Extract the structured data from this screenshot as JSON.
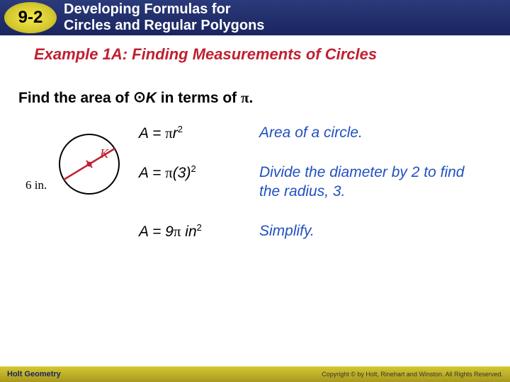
{
  "header": {
    "section_number": "9-2",
    "title_line1": "Developing Formulas for",
    "title_line2": "Circles and Regular Polygons"
  },
  "example": {
    "title": "Example 1A: Finding Measurements of Circles",
    "prompt_prefix": "Find the area of ",
    "prompt_symbol": "⊙",
    "prompt_var": "K",
    "prompt_mid": " in terms of ",
    "prompt_pi": "π",
    "prompt_end": "."
  },
  "figure": {
    "diameter_label": "6 in.",
    "center_label": "K",
    "circle_stroke": "#000000",
    "diameter_color": "#c02030",
    "center_dot_color": "#c02030",
    "label_color": "#c02030",
    "background": "#ffffff"
  },
  "work": {
    "rows": [
      {
        "eq_html": "<span>A</span> = <span class='pi'>π</span><span>r</span><span class='sup'>2</span>",
        "explanation": "Area of a circle."
      },
      {
        "eq_html": "<span>A</span> = <span class='pi'>π</span>(3)<span class='sup'>2</span>",
        "explanation": "Divide the diameter by 2 to find the radius, 3."
      },
      {
        "eq_html": "<span>A</span> = 9<span class='pi'>π</span> in<span class='sup'>2</span>",
        "explanation": "Simplify."
      }
    ]
  },
  "footer": {
    "left": "Holt Geometry",
    "right": "Copyright © by Holt, Rinehart and Winston. All Rights Reserved."
  },
  "colors": {
    "header_bg_top": "#2a3a7a",
    "header_bg_bottom": "#1a2560",
    "badge_inner": "#f5e94a",
    "badge_outer": "#a89820",
    "example_title": "#c02030",
    "explanation_text": "#2050c0",
    "footer_bg_top": "#d4c830",
    "footer_bg_bottom": "#a89820"
  }
}
